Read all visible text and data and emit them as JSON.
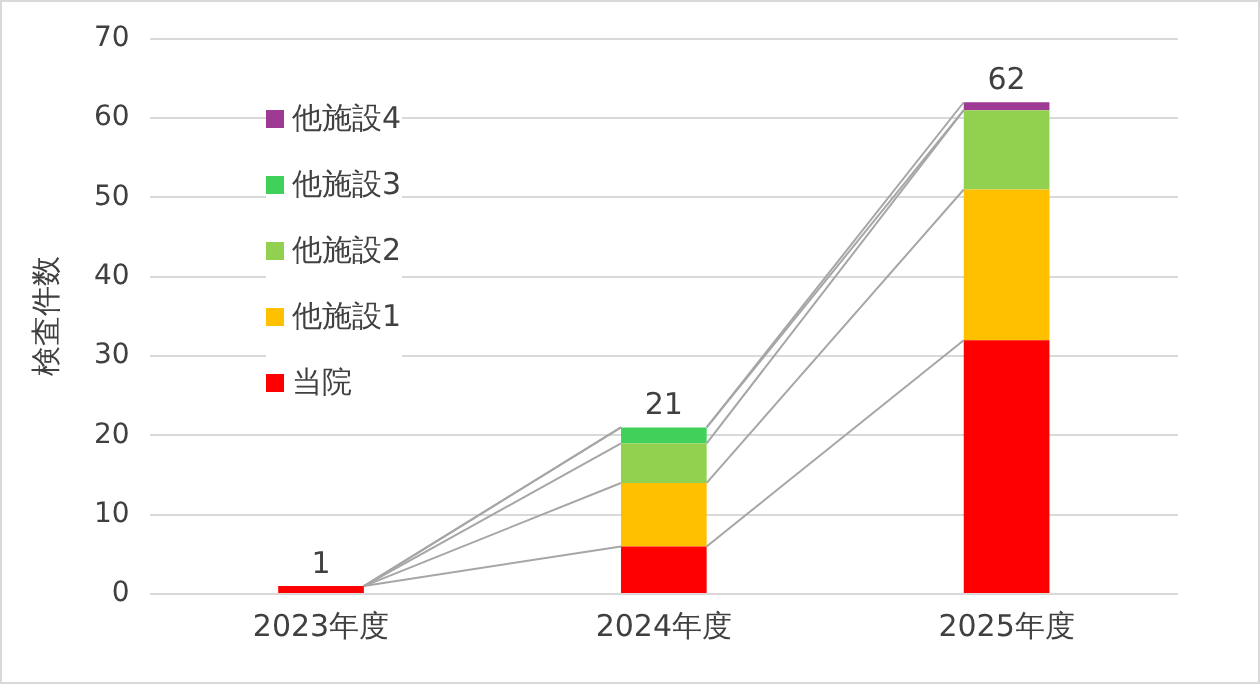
{
  "chart_data": {
    "type": "bar",
    "stacked": true,
    "ylabel": "検査件数",
    "categories": [
      "2023年度",
      "2024年度",
      "2025年度"
    ],
    "series": [
      {
        "name": "当院",
        "color": "#ff0000",
        "values": [
          1,
          6,
          32
        ]
      },
      {
        "name": "他施設1",
        "color": "#ffc000",
        "values": [
          0,
          8,
          19
        ]
      },
      {
        "name": "他施設2",
        "color": "#92d050",
        "values": [
          0,
          5,
          10
        ]
      },
      {
        "name": "他施設3",
        "color": "#3fd15a",
        "values": [
          0,
          2,
          0
        ]
      },
      {
        "name": "他施設4",
        "color": "#9e3a93",
        "values": [
          0,
          0,
          1
        ]
      }
    ],
    "totals": [
      "1",
      "21",
      "62"
    ],
    "ylim": [
      0,
      70
    ],
    "yticks": [
      0,
      10,
      20,
      30,
      40,
      50,
      60,
      70
    ],
    "grid": "y",
    "legend": "top left"
  }
}
